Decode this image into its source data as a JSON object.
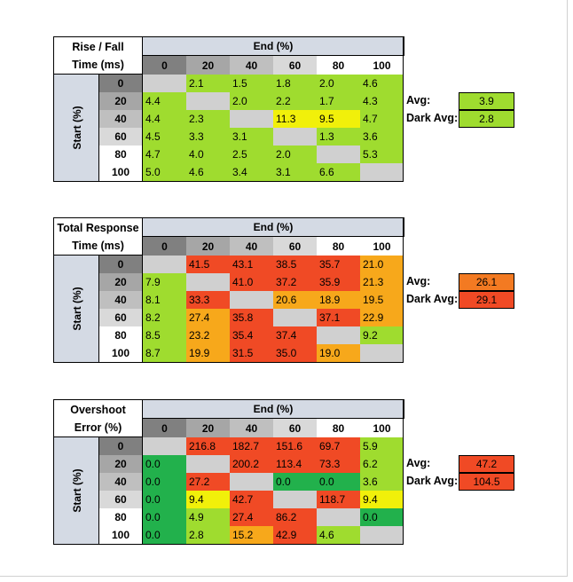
{
  "colors": {
    "green_dark": "#22b14c",
    "green": "#59c947",
    "green_light": "#9fdc2f",
    "yellow": "#f1f00a",
    "orange": "#f7a81b",
    "orange_red": "#f37a22",
    "red": "#f04a25",
    "diagonal": "#d0d0d0",
    "header_blue": "#d4dae4"
  },
  "chart_data": [
    {
      "type": "table",
      "title_lines": [
        "Rise / Fall",
        "Time (ms)"
      ],
      "column_header": "End (%)",
      "row_header": "Start (%)",
      "columns": [
        "0",
        "20",
        "40",
        "60",
        "80",
        "100"
      ],
      "rows": [
        "0",
        "20",
        "40",
        "60",
        "80",
        "100"
      ],
      "values": [
        [
          "",
          "2.1",
          "1.5",
          "1.8",
          "2.0",
          "4.6"
        ],
        [
          "4.4",
          "",
          "2.0",
          "2.2",
          "1.7",
          "4.3"
        ],
        [
          "4.4",
          "2.3",
          "",
          "11.3",
          "9.5",
          "4.7"
        ],
        [
          "4.5",
          "3.3",
          "3.1",
          "",
          "1.3",
          "3.6"
        ],
        [
          "4.7",
          "4.0",
          "2.5",
          "2.0",
          "",
          "5.3"
        ],
        [
          "5.0",
          "4.6",
          "3.4",
          "3.1",
          "6.6",
          ""
        ]
      ],
      "colors": [
        [
          "diag",
          "green_light",
          "green_light",
          "green_light",
          "green_light",
          "green_light"
        ],
        [
          "green_light",
          "diag",
          "green_light",
          "green_light",
          "green_light",
          "green_light"
        ],
        [
          "green_light",
          "green_light",
          "diag",
          "yellow",
          "yellow",
          "green_light"
        ],
        [
          "green_light",
          "green_light",
          "green_light",
          "diag",
          "green_light",
          "green_light"
        ],
        [
          "green_light",
          "green_light",
          "green_light",
          "green_light",
          "diag",
          "green_light"
        ],
        [
          "green_light",
          "green_light",
          "green_light",
          "green_light",
          "green_light",
          "diag"
        ]
      ],
      "stats": [
        {
          "label": "Avg:",
          "value": "3.9",
          "color": "green_light"
        },
        {
          "label": "Dark Avg:",
          "value": "2.8",
          "color": "green_light"
        }
      ]
    },
    {
      "type": "table",
      "title_lines": [
        "Total Response",
        "Time (ms)"
      ],
      "column_header": "End (%)",
      "row_header": "Start (%)",
      "columns": [
        "0",
        "20",
        "40",
        "60",
        "80",
        "100"
      ],
      "rows": [
        "0",
        "20",
        "40",
        "60",
        "80",
        "100"
      ],
      "values": [
        [
          "",
          "41.5",
          "43.1",
          "38.5",
          "35.7",
          "21.0"
        ],
        [
          "7.9",
          "",
          "41.0",
          "37.2",
          "35.9",
          "21.3"
        ],
        [
          "8.1",
          "33.3",
          "",
          "20.6",
          "18.9",
          "19.5"
        ],
        [
          "8.2",
          "27.4",
          "35.8",
          "",
          "37.1",
          "22.9"
        ],
        [
          "8.5",
          "23.2",
          "35.4",
          "37.4",
          "",
          "9.2"
        ],
        [
          "8.7",
          "19.9",
          "31.5",
          "35.0",
          "19.0",
          ""
        ]
      ],
      "colors": [
        [
          "diag",
          "red",
          "red",
          "red",
          "red",
          "orange"
        ],
        [
          "green_light",
          "diag",
          "red",
          "red",
          "red",
          "orange"
        ],
        [
          "green_light",
          "red",
          "diag",
          "orange",
          "orange",
          "orange"
        ],
        [
          "green_light",
          "orange",
          "red",
          "diag",
          "red",
          "orange"
        ],
        [
          "green_light",
          "orange",
          "red",
          "red",
          "diag",
          "green_light"
        ],
        [
          "green_light",
          "orange",
          "red",
          "red",
          "orange",
          "diag"
        ]
      ],
      "stats": [
        {
          "label": "Avg:",
          "value": "26.1",
          "color": "orange_red"
        },
        {
          "label": "Dark Avg:",
          "value": "29.1",
          "color": "red"
        }
      ]
    },
    {
      "type": "table",
      "title_lines": [
        "Overshoot",
        "Error (%)"
      ],
      "column_header": "End (%)",
      "row_header": "Start (%)",
      "columns": [
        "0",
        "20",
        "40",
        "60",
        "80",
        "100"
      ],
      "rows": [
        "0",
        "20",
        "40",
        "60",
        "80",
        "100"
      ],
      "values": [
        [
          "",
          "216.8",
          "182.7",
          "151.6",
          "69.7",
          "5.9"
        ],
        [
          "0.0",
          "",
          "200.2",
          "113.4",
          "73.3",
          "6.2"
        ],
        [
          "0.0",
          "27.2",
          "",
          "0.0",
          "0.0",
          "3.6"
        ],
        [
          "0.0",
          "9.4",
          "42.7",
          "",
          "118.7",
          "9.4"
        ],
        [
          "0.0",
          "4.9",
          "27.4",
          "86.2",
          "",
          "0.0"
        ],
        [
          "0.0",
          "2.8",
          "15.2",
          "42.9",
          "4.6",
          ""
        ]
      ],
      "colors": [
        [
          "diag",
          "red",
          "red",
          "red",
          "red",
          "green_light"
        ],
        [
          "green_dark",
          "diag",
          "red",
          "red",
          "red",
          "green_light"
        ],
        [
          "green_dark",
          "red",
          "diag",
          "green_dark",
          "green_dark",
          "green_light"
        ],
        [
          "green_dark",
          "yellow",
          "red",
          "diag",
          "red",
          "yellow"
        ],
        [
          "green_dark",
          "green_light",
          "red",
          "red",
          "diag",
          "green_dark"
        ],
        [
          "green_dark",
          "green_light",
          "orange",
          "red",
          "green_light",
          "diag"
        ]
      ],
      "stats": [
        {
          "label": "Avg:",
          "value": "47.2",
          "color": "red"
        },
        {
          "label": "Dark Avg:",
          "value": "104.5",
          "color": "red"
        }
      ]
    }
  ]
}
